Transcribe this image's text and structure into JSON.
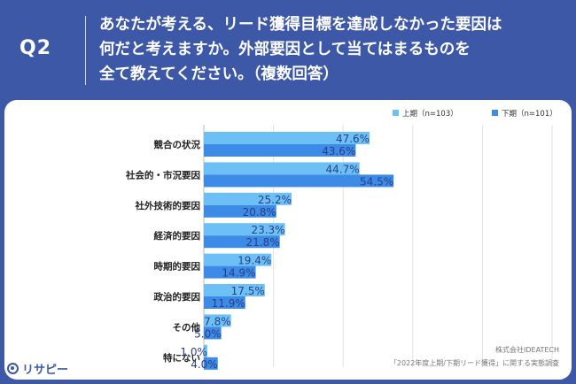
{
  "header": {
    "qnum": "Q2",
    "question_lines": [
      "あなたが考える、リード獲得目標を達成しなかった要因は",
      "何だと考えますか。外部要因として当てはまるものを",
      "全て教えてください。（複数回答）"
    ]
  },
  "credit": {
    "company": "株式会社IDEATECH",
    "survey": "「2022年度上期/下期リード獲得」に関する実態調査"
  },
  "logo": {
    "text": "リサピー",
    "icon": "speech-bubble-icon"
  },
  "chart_data": {
    "type": "bar",
    "orientation": "horizontal",
    "categories": [
      "競合の状況",
      "社会的・市況要因",
      "社外技術的要因",
      "経済的要因",
      "時期的要因",
      "政治的要因",
      "その他",
      "特にない"
    ],
    "series": [
      {
        "name": "上期（n=103）",
        "color": "#6cc0f5",
        "values": [
          47.6,
          44.7,
          25.2,
          23.3,
          19.4,
          17.5,
          7.8,
          1.0
        ],
        "labels": [
          "47.6%",
          "44.7%",
          "25.2%",
          "23.3%",
          "19.4%",
          "17.5%",
          "7.8%",
          "1.0%"
        ]
      },
      {
        "name": "下期（n=101）",
        "color": "#3c8be6",
        "values": [
          43.6,
          54.5,
          20.8,
          21.8,
          14.9,
          11.9,
          5.0,
          4.0
        ],
        "labels": [
          "43.6%",
          "54.5%",
          "20.8%",
          "21.8%",
          "14.9%",
          "11.9%",
          "5.0%",
          "4.0%"
        ]
      }
    ],
    "xlim": [
      0,
      100
    ],
    "grid": true,
    "legend_position": "top-right"
  }
}
